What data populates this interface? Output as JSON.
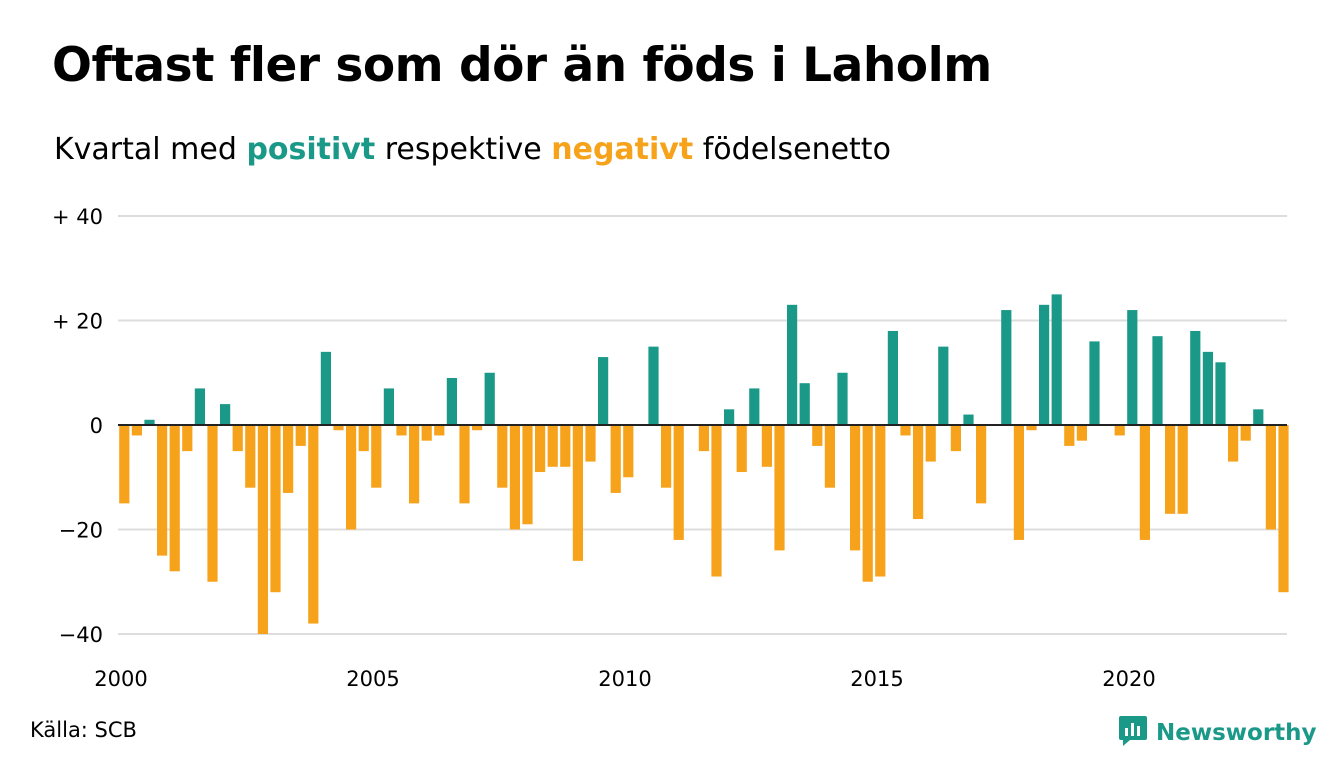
{
  "header": {
    "title": "Oftast fler som dör än föds i Laholm",
    "subtitle_pre": "Kvartal med",
    "subtitle_pos": "positivt",
    "subtitle_mid": "respektive",
    "subtitle_neg": "negativt",
    "subtitle_post": "födelsenetto"
  },
  "footer": {
    "source": "Källa: SCB",
    "brand": "Newsworthy"
  },
  "colors": {
    "positive": "#1a9988",
    "negative": "#f7a21b",
    "grid": "#dddddd",
    "zero": "#222222"
  },
  "chart_data": {
    "type": "bar",
    "title": "Oftast fler som dör än föds i Laholm",
    "subtitle": "Kvartal med positivt respektive negativt födelsenetto",
    "xlabel": "",
    "ylabel": "",
    "x_start": 2000,
    "periods_per_year": 4,
    "ylim": [
      -40,
      40
    ],
    "y_ticks": [
      {
        "value": 40,
        "label": "+ 40"
      },
      {
        "value": 20,
        "label": "+ 20"
      },
      {
        "value": 0,
        "label": "0"
      },
      {
        "value": -20,
        "label": "−20"
      },
      {
        "value": -40,
        "label": "−40"
      }
    ],
    "x_ticks": [
      {
        "value": 2000,
        "label": "2000"
      },
      {
        "value": 2005,
        "label": "2005"
      },
      {
        "value": 2010,
        "label": "2010"
      },
      {
        "value": 2015,
        "label": "2015"
      },
      {
        "value": 2020,
        "label": "2020"
      }
    ],
    "grid": true,
    "values": [
      -15,
      -2,
      1,
      -25,
      -28,
      -5,
      7,
      -30,
      4,
      -5,
      -12,
      -40,
      -32,
      -13,
      -4,
      -38,
      14,
      -1,
      -20,
      -5,
      -12,
      7,
      -2,
      -15,
      -3,
      -2,
      9,
      -15,
      -1,
      10,
      -12,
      -20,
      -19,
      -9,
      -8,
      -8,
      -26,
      -7,
      13,
      -13,
      -10,
      0,
      15,
      -12,
      -22,
      0,
      -5,
      -29,
      3,
      -9,
      7,
      -8,
      -24,
      23,
      8,
      -4,
      -12,
      10,
      -24,
      -30,
      -29,
      18,
      -2,
      -18,
      -7,
      15,
      -5,
      2,
      -15,
      0,
      22,
      -22,
      -1,
      23,
      25,
      -4,
      -3,
      16,
      0,
      -2,
      22,
      -22,
      17,
      -17,
      -17,
      18,
      14,
      12,
      -7,
      -3,
      3,
      -20,
      -32
    ]
  }
}
